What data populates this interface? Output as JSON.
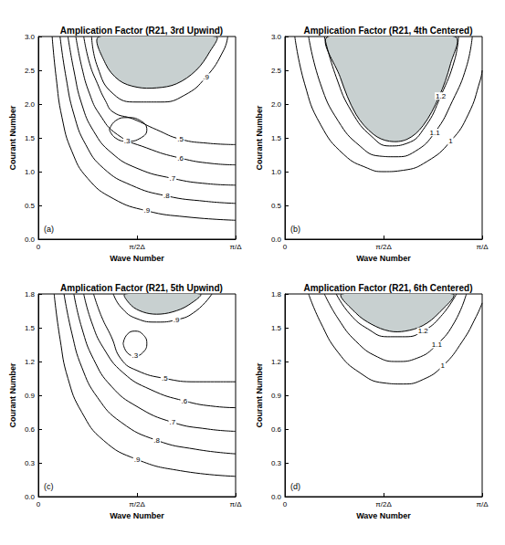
{
  "chart_data": [
    {
      "type": "contour",
      "title": "Amplication Factor (R21, 3rd Upwind)",
      "annotation": "(a)",
      "x_label": "Wave Number",
      "y_label": "Courant Number",
      "color": "#000000",
      "xlim": [
        0,
        1
      ],
      "xticks": [
        0,
        {
          "value": 0.5,
          "label": "π/2Δ"
        },
        {
          "value": 1,
          "label": "π/Δ"
        }
      ],
      "ylim": [
        0,
        3
      ],
      "yticks": [
        {
          "value": 0,
          "label": "0.0"
        },
        0.5,
        {
          "value": 1,
          "label": "1.0"
        },
        1.5,
        {
          "value": 2,
          "label": "2.0"
        },
        2.5,
        {
          "value": 3,
          "label": "3.0"
        }
      ],
      "data_labels": true,
      "shaded_region": {
        "color": "#c8d0d0",
        "points": [
          [
            0.31,
            3.0
          ],
          [
            0.34,
            2.6
          ],
          [
            0.41,
            2.35
          ],
          [
            0.5,
            2.25
          ],
          [
            0.6,
            2.24
          ],
          [
            0.7,
            2.3
          ],
          [
            0.8,
            2.5
          ],
          [
            0.87,
            2.78
          ],
          [
            0.9,
            3.0
          ]
        ]
      },
      "contours": [
        {
          "label": ".9",
          "points": [
            [
              0.07,
              3.0
            ],
            [
              0.09,
              2.4
            ],
            [
              0.12,
              1.8
            ],
            [
              0.17,
              1.3
            ],
            [
              0.25,
              0.9
            ],
            [
              0.38,
              0.6
            ],
            [
              0.55,
              0.42
            ],
            [
              0.75,
              0.33
            ],
            [
              1.0,
              0.28
            ]
          ]
        },
        {
          "label": ".8",
          "points": [
            [
              0.11,
              3.0
            ],
            [
              0.14,
              2.4
            ],
            [
              0.18,
              1.85
            ],
            [
              0.24,
              1.4
            ],
            [
              0.33,
              1.05
            ],
            [
              0.47,
              0.8
            ],
            [
              0.65,
              0.64
            ],
            [
              0.85,
              0.56
            ],
            [
              1.0,
              0.53
            ]
          ]
        },
        {
          "label": ".7",
          "points": [
            [
              0.15,
              3.0
            ],
            [
              0.18,
              2.5
            ],
            [
              0.22,
              2.0
            ],
            [
              0.28,
              1.6
            ],
            [
              0.37,
              1.28
            ],
            [
              0.5,
              1.05
            ],
            [
              0.68,
              0.9
            ],
            [
              0.86,
              0.82
            ],
            [
              1.0,
              0.8
            ]
          ]
        },
        {
          "label": ".6",
          "points": [
            [
              0.19,
              3.0
            ],
            [
              0.22,
              2.55
            ],
            [
              0.26,
              2.15
            ],
            [
              0.31,
              1.85
            ],
            [
              0.4,
              1.55
            ],
            [
              0.55,
              1.35
            ],
            [
              0.72,
              1.2
            ],
            [
              0.88,
              1.12
            ],
            [
              1.0,
              1.1
            ]
          ]
        },
        {
          "label": ".5",
          "points": [
            [
              0.23,
              3.0
            ],
            [
              0.26,
              2.6
            ],
            [
              0.3,
              2.3
            ],
            [
              0.34,
              2.05
            ],
            [
              0.38,
              1.88
            ],
            [
              0.48,
              1.78
            ],
            [
              0.6,
              1.62
            ],
            [
              0.72,
              1.48
            ],
            [
              0.86,
              1.42
            ],
            [
              1.0,
              1.4
            ]
          ]
        },
        {
          "label": ".3",
          "points": [
            [
              0.36,
              1.62
            ],
            [
              0.39,
              1.75
            ],
            [
              0.45,
              1.8
            ],
            [
              0.52,
              1.75
            ],
            [
              0.55,
              1.62
            ],
            [
              0.52,
              1.5
            ],
            [
              0.45,
              1.45
            ],
            [
              0.39,
              1.5
            ],
            [
              0.36,
              1.62
            ]
          ]
        },
        {
          "label": ".9",
          "points": [
            [
              0.27,
              3.0
            ],
            [
              0.3,
              2.55
            ],
            [
              0.38,
              2.15
            ],
            [
              0.5,
              2.03
            ],
            [
              0.62,
              2.03
            ],
            [
              0.74,
              2.13
            ],
            [
              0.85,
              2.4
            ],
            [
              0.94,
              2.8
            ],
            [
              0.96,
              3.0
            ]
          ]
        }
      ]
    },
    {
      "type": "contour",
      "title": "Amplication Factor (R21, 4th Centered)",
      "annotation": "(b)",
      "x_label": "Wave Number",
      "y_label": "Courant Number",
      "color": "#000000",
      "xlim": [
        0,
        1
      ],
      "xticks": [
        0,
        {
          "value": 0.5,
          "label": "π/2Δ"
        },
        {
          "value": 1,
          "label": "π/Δ"
        }
      ],
      "ylim": [
        0,
        3
      ],
      "yticks": [
        {
          "value": 0,
          "label": "0.0"
        },
        0.5,
        {
          "value": 1,
          "label": "1.0"
        },
        1.5,
        {
          "value": 2,
          "label": "2.0"
        },
        2.5,
        {
          "value": 3,
          "label": "3.0"
        }
      ],
      "data_labels": true,
      "shaded_region": {
        "color": "#c8d0d0",
        "points": [
          [
            0.22,
            3.0
          ],
          [
            0.28,
            2.4
          ],
          [
            0.36,
            1.85
          ],
          [
            0.45,
            1.55
          ],
          [
            0.53,
            1.45
          ],
          [
            0.62,
            1.48
          ],
          [
            0.7,
            1.68
          ],
          [
            0.78,
            2.1
          ],
          [
            0.84,
            2.6
          ],
          [
            0.86,
            3.0
          ]
        ]
      },
      "contours": [
        {
          "label": "1",
          "points": [
            [
              0.05,
              3.0
            ],
            [
              0.1,
              2.3
            ],
            [
              0.18,
              1.7
            ],
            [
              0.3,
              1.25
            ],
            [
              0.42,
              1.05
            ],
            [
              0.5,
              1.0
            ],
            [
              0.6,
              1.02
            ],
            [
              0.72,
              1.15
            ],
            [
              0.84,
              1.45
            ],
            [
              0.93,
              1.85
            ],
            [
              0.99,
              2.35
            ],
            [
              1.0,
              2.5
            ]
          ]
        },
        {
          "label": "1.1",
          "points": [
            [
              0.12,
              3.0
            ],
            [
              0.18,
              2.3
            ],
            [
              0.27,
              1.75
            ],
            [
              0.38,
              1.38
            ],
            [
              0.48,
              1.23
            ],
            [
              0.56,
              1.22
            ],
            [
              0.66,
              1.3
            ],
            [
              0.76,
              1.58
            ],
            [
              0.85,
              2.05
            ],
            [
              0.92,
              2.55
            ],
            [
              0.95,
              3.0
            ]
          ]
        },
        {
          "label": "1.2",
          "points": [
            [
              0.2,
              3.0
            ],
            [
              0.26,
              2.4
            ],
            [
              0.34,
              1.88
            ],
            [
              0.44,
              1.52
            ],
            [
              0.53,
              1.38
            ],
            [
              0.62,
              1.42
            ],
            [
              0.71,
              1.66
            ],
            [
              0.79,
              2.12
            ],
            [
              0.86,
              2.65
            ],
            [
              0.88,
              3.0
            ]
          ]
        }
      ]
    },
    {
      "type": "contour",
      "title": "Amplication Factor (R21, 5th Upwind)",
      "annotation": "(c)",
      "x_label": "Wave Number",
      "y_label": "Courant Number",
      "color": "#000000",
      "xlim": [
        0,
        1
      ],
      "xticks": [
        0,
        {
          "value": 0.5,
          "label": "π/2Δ"
        },
        {
          "value": 1,
          "label": "π/Δ"
        }
      ],
      "ylim": [
        0,
        1.8
      ],
      "yticks": [
        {
          "value": 0,
          "label": "0.0"
        },
        0.3,
        0.6,
        0.9,
        1.2,
        1.5,
        1.8
      ],
      "data_labels": true,
      "shaded_region": {
        "color": "#c8d0d0",
        "points": [
          [
            0.44,
            1.8
          ],
          [
            0.47,
            1.7
          ],
          [
            0.53,
            1.64
          ],
          [
            0.6,
            1.62
          ],
          [
            0.68,
            1.64
          ],
          [
            0.76,
            1.7
          ],
          [
            0.82,
            1.8
          ]
        ]
      },
      "contours": [
        {
          "label": ".9",
          "points": [
            [
              0.08,
              1.8
            ],
            [
              0.11,
              1.4
            ],
            [
              0.15,
              1.05
            ],
            [
              0.22,
              0.75
            ],
            [
              0.33,
              0.5
            ],
            [
              0.5,
              0.33
            ],
            [
              0.72,
              0.23
            ],
            [
              1.0,
              0.18
            ]
          ]
        },
        {
          "label": ".8",
          "points": [
            [
              0.13,
              1.8
            ],
            [
              0.17,
              1.45
            ],
            [
              0.22,
              1.15
            ],
            [
              0.3,
              0.88
            ],
            [
              0.42,
              0.66
            ],
            [
              0.6,
              0.5
            ],
            [
              0.8,
              0.42
            ],
            [
              1.0,
              0.38
            ]
          ]
        },
        {
          "label": ".7",
          "points": [
            [
              0.18,
              1.8
            ],
            [
              0.22,
              1.5
            ],
            [
              0.28,
              1.22
            ],
            [
              0.37,
              0.98
            ],
            [
              0.5,
              0.8
            ],
            [
              0.68,
              0.66
            ],
            [
              0.86,
              0.6
            ],
            [
              1.0,
              0.58
            ]
          ]
        },
        {
          "label": ".6",
          "points": [
            [
              0.23,
              1.8
            ],
            [
              0.27,
              1.55
            ],
            [
              0.33,
              1.32
            ],
            [
              0.43,
              1.1
            ],
            [
              0.57,
              0.95
            ],
            [
              0.74,
              0.85
            ],
            [
              0.9,
              0.8
            ],
            [
              1.0,
              0.79
            ]
          ]
        },
        {
          "label": ".5",
          "points": [
            [
              0.28,
              1.8
            ],
            [
              0.32,
              1.6
            ],
            [
              0.37,
              1.42
            ],
            [
              0.42,
              1.22
            ],
            [
              0.5,
              1.12
            ],
            [
              0.64,
              1.05
            ],
            [
              0.8,
              1.02
            ],
            [
              1.0,
              1.02
            ]
          ]
        },
        {
          "label": ".3",
          "points": [
            [
              0.43,
              1.36
            ],
            [
              0.45,
              1.44
            ],
            [
              0.49,
              1.47
            ],
            [
              0.53,
              1.44
            ],
            [
              0.55,
              1.36
            ],
            [
              0.53,
              1.28
            ],
            [
              0.49,
              1.25
            ],
            [
              0.45,
              1.28
            ],
            [
              0.43,
              1.36
            ]
          ]
        },
        {
          "label": ".9",
          "points": [
            [
              0.38,
              1.8
            ],
            [
              0.42,
              1.68
            ],
            [
              0.5,
              1.58
            ],
            [
              0.6,
              1.55
            ],
            [
              0.7,
              1.57
            ],
            [
              0.8,
              1.65
            ],
            [
              0.88,
              1.8
            ]
          ]
        }
      ]
    },
    {
      "type": "contour",
      "title": "Amplication Factor (R21, 6th Centered)",
      "annotation": "(d)",
      "x_label": "Wave Number",
      "y_label": "Courant Number",
      "color": "#000000",
      "xlim": [
        0,
        1
      ],
      "xticks": [
        0,
        {
          "value": 0.5,
          "label": "π/2Δ"
        },
        {
          "value": 1,
          "label": "π/Δ"
        }
      ],
      "ylim": [
        0,
        1.8
      ],
      "yticks": [
        {
          "value": 0,
          "label": "0.0"
        },
        0.3,
        0.6,
        0.9,
        1.2,
        1.5,
        1.8
      ],
      "data_labels": true,
      "shaded_region": {
        "color": "#c8d0d0",
        "points": [
          [
            0.29,
            1.8
          ],
          [
            0.36,
            1.63
          ],
          [
            0.44,
            1.53
          ],
          [
            0.53,
            1.47
          ],
          [
            0.61,
            1.47
          ],
          [
            0.7,
            1.52
          ],
          [
            0.78,
            1.63
          ],
          [
            0.85,
            1.8
          ]
        ]
      },
      "contours": [
        {
          "label": "1",
          "points": [
            [
              0.12,
              1.8
            ],
            [
              0.18,
              1.55
            ],
            [
              0.27,
              1.28
            ],
            [
              0.38,
              1.1
            ],
            [
              0.5,
              1.01
            ],
            [
              0.6,
              1.0
            ],
            [
              0.7,
              1.04
            ],
            [
              0.8,
              1.16
            ],
            [
              0.9,
              1.38
            ],
            [
              0.97,
              1.6
            ],
            [
              1.0,
              1.72
            ]
          ]
        },
        {
          "label": "1.1",
          "points": [
            [
              0.2,
              1.8
            ],
            [
              0.27,
              1.58
            ],
            [
              0.36,
              1.38
            ],
            [
              0.47,
              1.24
            ],
            [
              0.57,
              1.2
            ],
            [
              0.67,
              1.23
            ],
            [
              0.77,
              1.35
            ],
            [
              0.86,
              1.55
            ],
            [
              0.92,
              1.8
            ]
          ]
        },
        {
          "label": "1.2",
          "points": [
            [
              0.26,
              1.8
            ],
            [
              0.33,
              1.62
            ],
            [
              0.42,
              1.49
            ],
            [
              0.52,
              1.42
            ],
            [
              0.61,
              1.42
            ],
            [
              0.7,
              1.47
            ],
            [
              0.79,
              1.6
            ],
            [
              0.87,
              1.8
            ]
          ]
        }
      ]
    }
  ]
}
